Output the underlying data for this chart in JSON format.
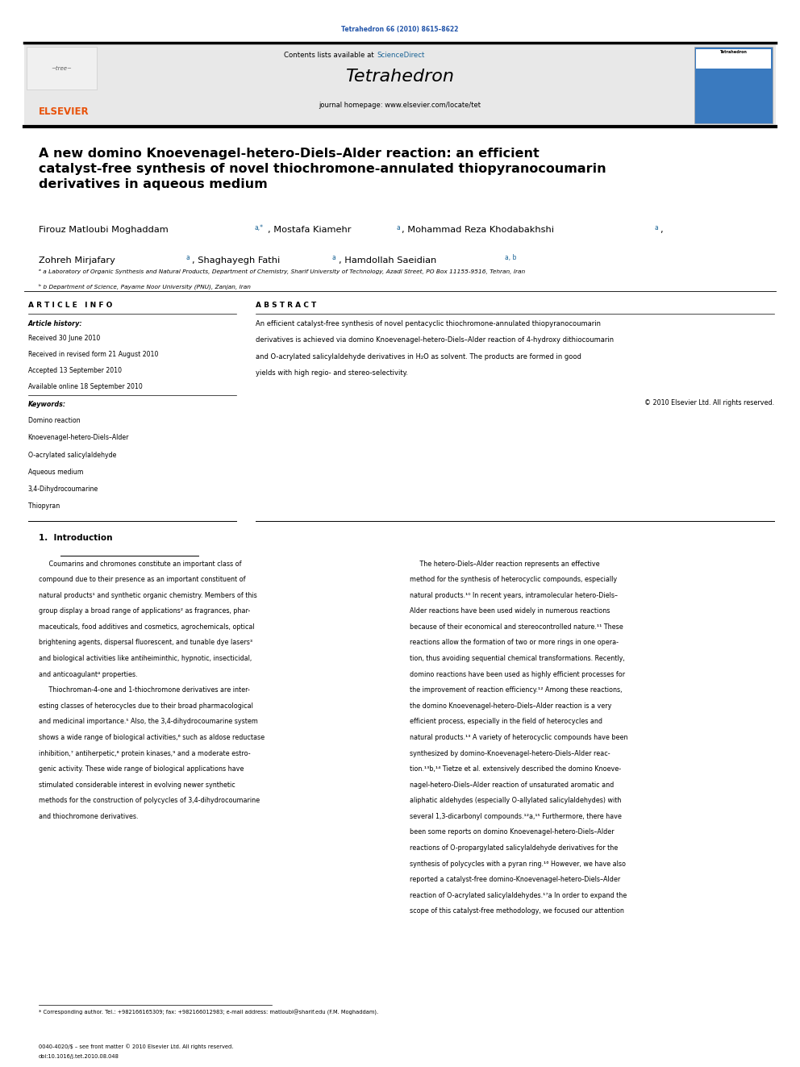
{
  "page_width": 9.92,
  "page_height": 13.23,
  "bg_color": "#ffffff",
  "top_citation": "Tetrahedron 66 (2010) 8615–8622",
  "journal_name": "Tetrahedron",
  "contents_line_pre": "Contents lists available at ",
  "contents_line_sd": "ScienceDirect",
  "journal_homepage": "journal homepage: www.elsevier.com/locate/tet",
  "title": "A new domino Knoevenagel-hetero-Diels–Alder reaction: an efficient\ncatalyst-free synthesis of novel thiochromone-annulated thiopyranocoumarin\nderivatives in aqueous medium",
  "authors_line1": "Firouz Matloubi Moghaddam",
  "authors_line1_sup": "a,*",
  "authors_line1_cont": ", Mostafa Kiamehr",
  "authors_line1_sup2": "a",
  "authors_line1_cont2": ", Mohammad Reza Khodabakhshi",
  "authors_line1_sup3": "a",
  "authors_line2": "Zohreh Mirjafary",
  "authors_line2_sup": "a",
  "authors_line2_cont": ", Shaghayegh Fathi",
  "authors_line2_sup2": "a",
  "authors_line2_cont2": ", Hamdollah Saeidian",
  "authors_line2_sup3": "a, b",
  "affil_a": "a Laboratory of Organic Synthesis and Natural Products, Department of Chemistry, Sharif University of Technology, Azadi Street, PO Box 11155-9516, Tehran, Iran",
  "affil_b": "b Department of Science, Payame Noor University (PNU), Zanjan, Iran",
  "article_info_header": "A R T I C L E   I N F O",
  "abstract_header": "A B S T R A C T",
  "article_history_label": "Article history:",
  "received": "Received 30 June 2010",
  "revised": "Received in revised form 21 August 2010",
  "accepted": "Accepted 13 September 2010",
  "available": "Available online 18 September 2010",
  "keywords_label": "Keywords:",
  "keywords": [
    "Domino reaction",
    "Knoevenagel-hetero-Diels–Alder",
    "O-acrylated salicylaldehyde",
    "Aqueous medium",
    "3,4-Dihydrocoumarine",
    "Thiopyran"
  ],
  "abstract_lines": [
    "An efficient catalyst-free synthesis of novel pentacyclic thiochromone-annulated thiopyranocoumarin",
    "derivatives is achieved via domino Knoevenagel-hetero-Diels–Alder reaction of 4-hydroxy dithiocoumarin",
    "and O-acrylated salicylaldehyde derivatives in H₂O as solvent. The products are formed in good",
    "yields with high regio- and stereo-selectivity."
  ],
  "copyright": "© 2010 Elsevier Ltd. All rights reserved.",
  "intro_left_lines": [
    "     Coumarins and chromones constitute an important class of",
    "compound due to their presence as an important constituent of",
    "natural products¹ and synthetic organic chemistry. Members of this",
    "group display a broad range of applications² as fragrances, phar-",
    "maceuticals, food additives and cosmetics, agrochemicals, optical",
    "brightening agents, dispersal fluorescent, and tunable dye lasers³",
    "and biological activities like antiheiminthic, hypnotic, insecticidal,",
    "and anticoagulant⁴ properties.",
    "     Thiochroman-4-one and 1-thiochromone derivatives are inter-",
    "esting classes of heterocycles due to their broad pharmacological",
    "and medicinal importance.⁵ Also, the 3,4-dihydrocoumarine system",
    "shows a wide range of biological activities,⁶ such as aldose reductase",
    "inhibition,⁷ antiherpetic,⁸ protein kinases,⁹ and a moderate estro-",
    "genic activity. These wide range of biological applications have",
    "stimulated considerable interest in evolving newer synthetic",
    "methods for the construction of polycycles of 3,4-dihydrocoumarine",
    "and thiochromone derivatives."
  ],
  "intro_right_lines": [
    "     The hetero-Diels–Alder reaction represents an effective",
    "method for the synthesis of heterocyclic compounds, especially",
    "natural products.¹⁰ In recent years, intramolecular hetero-Diels–",
    "Alder reactions have been used widely in numerous reactions",
    "because of their economical and stereocontrolled nature.¹¹ These",
    "reactions allow the formation of two or more rings in one opera-",
    "tion, thus avoiding sequential chemical transformations. Recently,",
    "domino reactions have been used as highly efficient processes for",
    "the improvement of reaction efficiency.¹² Among these reactions,",
    "the domino Knoevenagel-hetero-Diels–Alder reaction is a very",
    "efficient process, especially in the field of heterocycles and",
    "natural products.¹³ A variety of heterocyclic compounds have been",
    "synthesized by domino-Knoevenagel-hetero-Diels–Alder reac-",
    "tion.¹³b,¹⁴ Tietze et al. extensively described the domino Knoeve-",
    "nagel-hetero-Diels–Alder reaction of unsaturated aromatic and",
    "aliphatic aldehydes (especially O-allylated salicylaldehydes) with",
    "several 1,3-dicarbonyl compounds.¹²a,¹⁵ Furthermore, there have",
    "been some reports on domino Knoevenagel-hetero-Diels–Alder",
    "reactions of O-propargylated salicylaldehyde derivatives for the",
    "synthesis of polycycles with a pyran ring.¹⁶ However, we have also",
    "reported a catalyst-free domino-Knoevenagel-hetero-Diels–Alder",
    "reaction of O-acrylated salicylaldehydes.¹⁷a In order to expand the",
    "scope of this catalyst-free methodology, we focused our attention"
  ],
  "footnote": "* Corresponding author. Tel.: +982166165309; fax: +982166012983; e-mail address: matloubi@sharif.edu (F.M. Moghaddam).",
  "footer_line1": "0040-4020/$ – see front matter © 2010 Elsevier Ltd. All rights reserved.",
  "footer_line2": "doi:10.1016/j.tet.2010.08.048",
  "header_bg": "#e8e8e8",
  "elsevier_color": "#e8520a",
  "sciencedirect_color": "#1a6496",
  "citation_color": "#2255aa",
  "intro_underline_color": "#000000"
}
